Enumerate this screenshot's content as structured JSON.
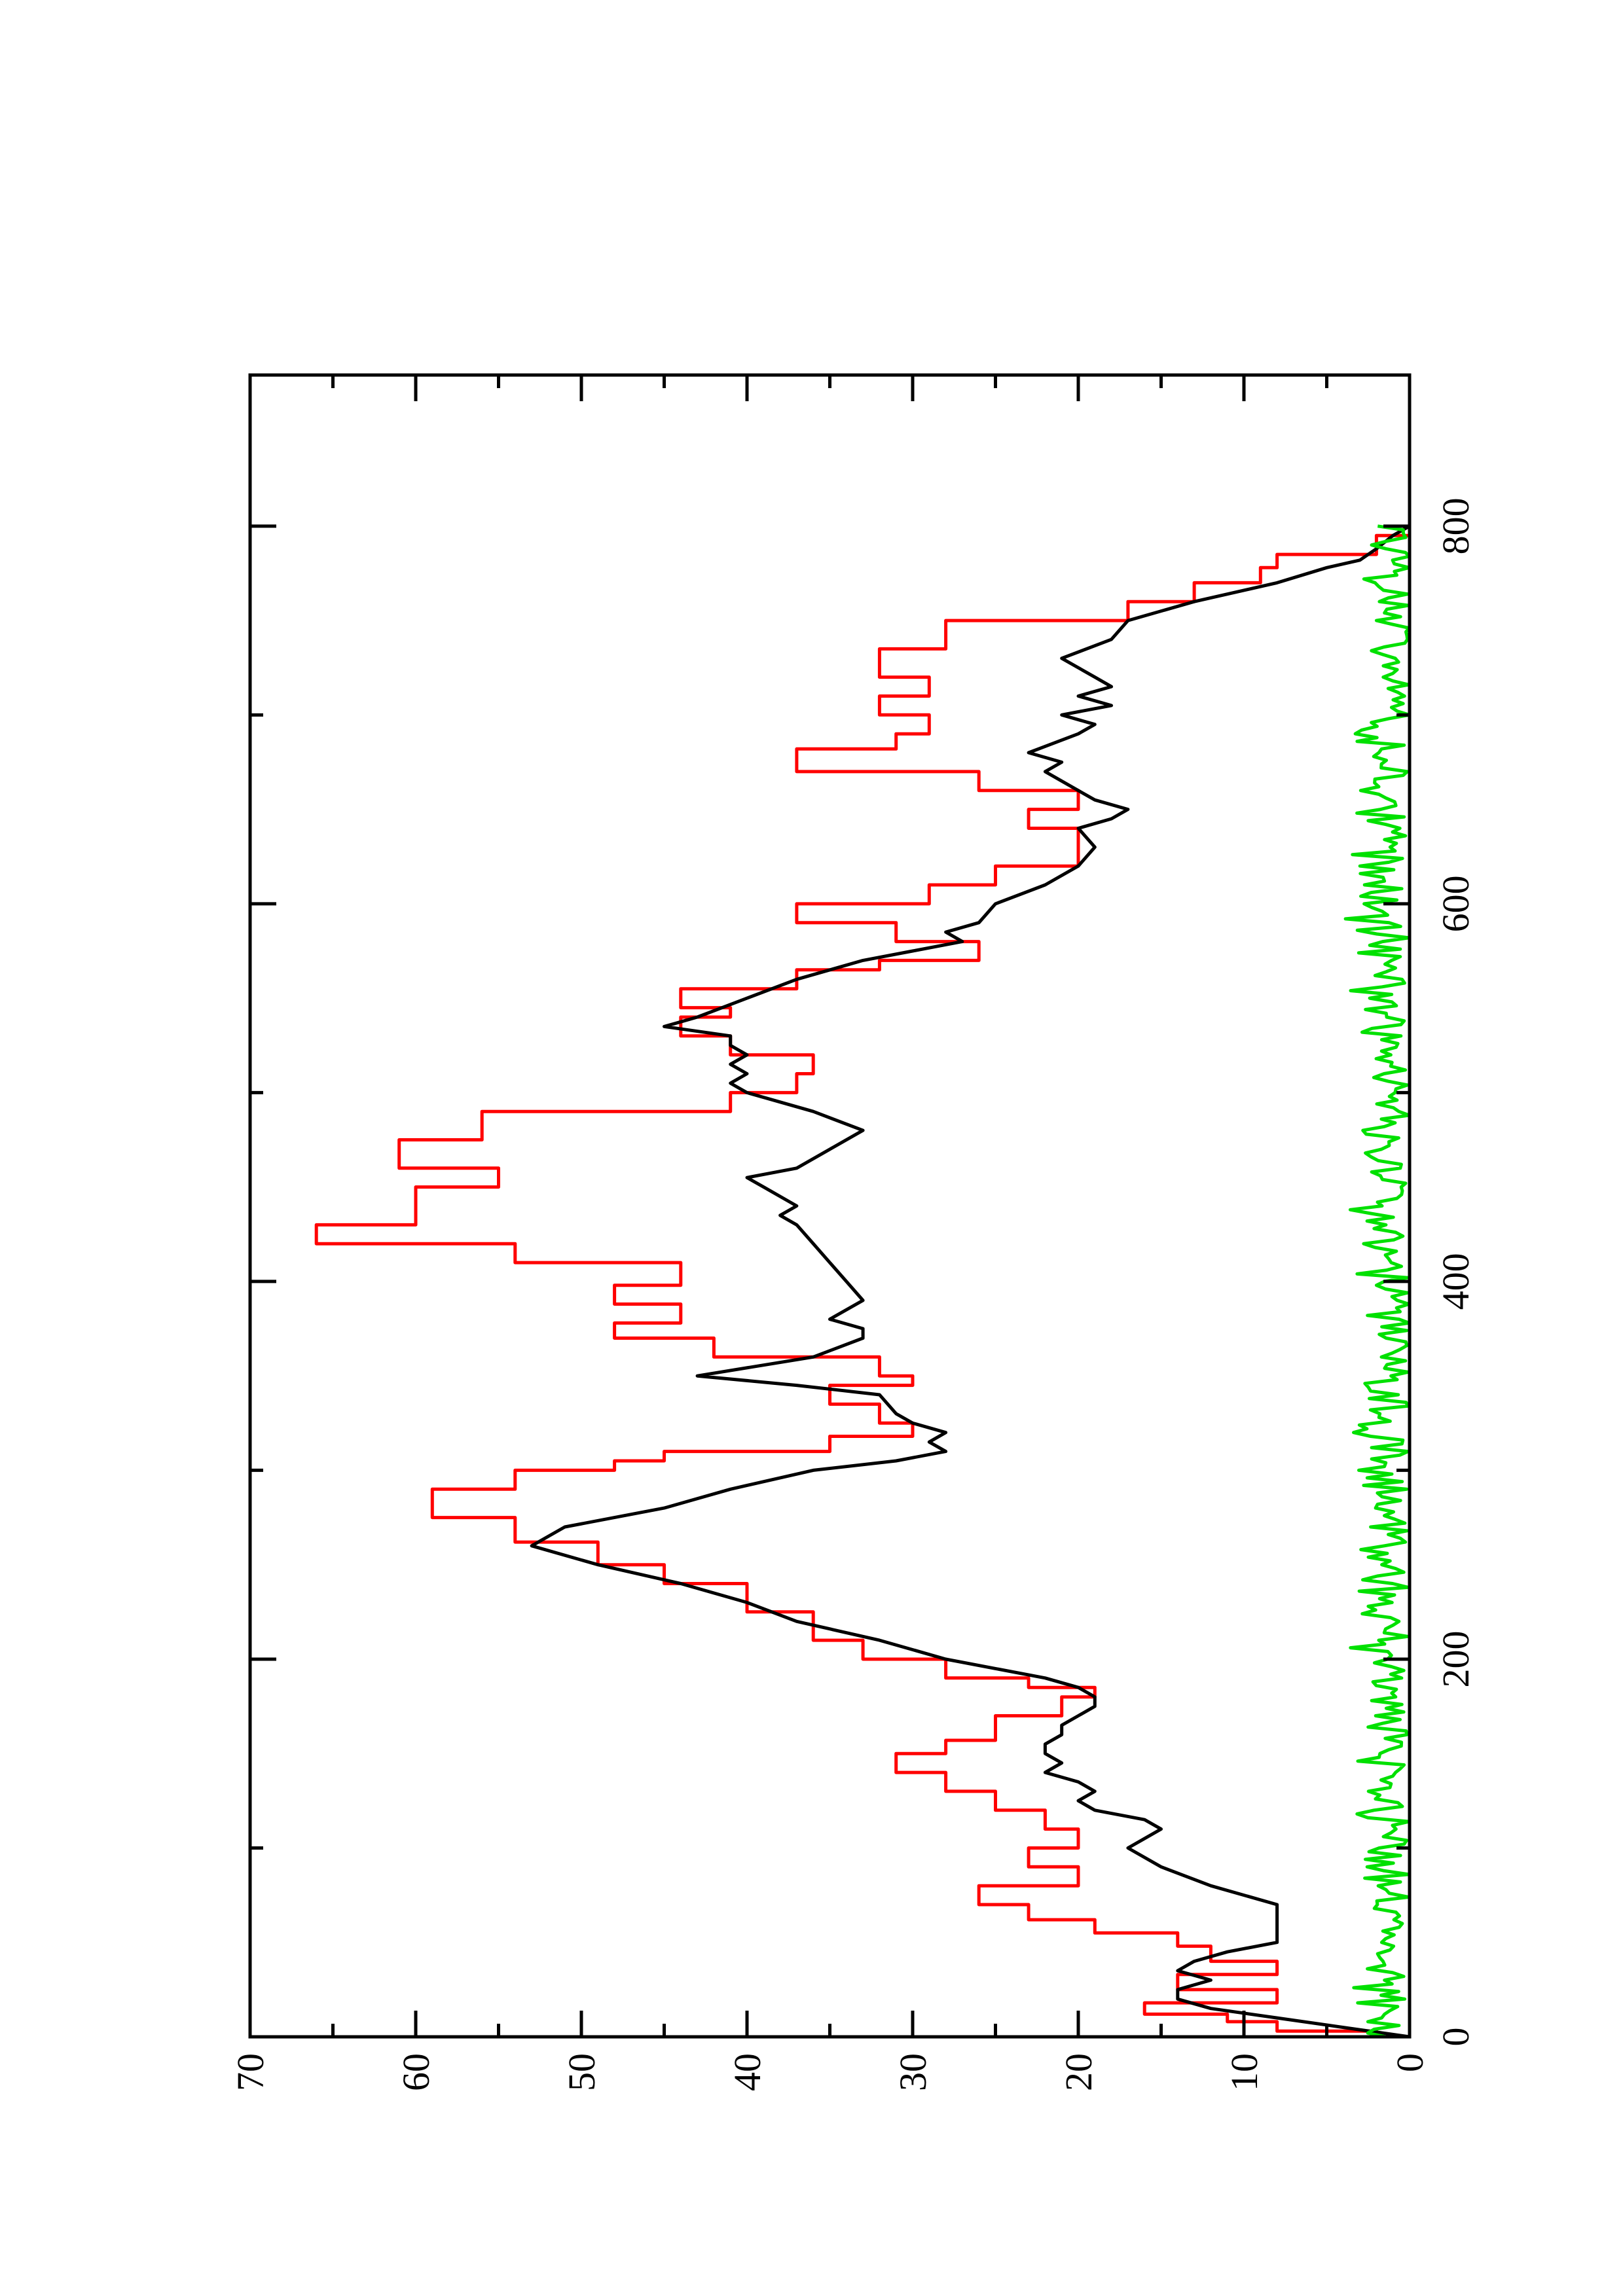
{
  "chart_data": {
    "type": "line",
    "orientation": "rotated-90-ccw",
    "title": "",
    "xlabel": "",
    "ylabel": "",
    "xlim": [
      0,
      880
    ],
    "ylim": [
      0,
      70
    ],
    "grid": false,
    "legend": "none",
    "x_major_ticks": [
      0,
      200,
      400,
      600,
      800
    ],
    "x_minor_ticks": [
      100,
      300,
      500,
      700
    ],
    "x_tick_labels": [
      "0",
      "200",
      "400",
      "600",
      "800"
    ],
    "y_major_ticks": [
      0,
      10,
      20,
      30,
      40,
      50,
      60,
      70
    ],
    "y_minor_ticks": [
      5,
      15,
      25,
      35,
      45,
      55,
      65
    ],
    "y_tick_labels": [
      "0",
      "10",
      "20",
      "30",
      "40",
      "50",
      "60",
      "70"
    ],
    "series": [
      {
        "color": "#ff0000",
        "step": true,
        "x": [
          0,
          3,
          8,
          12,
          18,
          25,
          33,
          40,
          48,
          55,
          62,
          70,
          80,
          90,
          100,
          110,
          120,
          130,
          140,
          150,
          157,
          170,
          180,
          185,
          190,
          200,
          210,
          225,
          240,
          250,
          262,
          275,
          290,
          300,
          305,
          310,
          318,
          325,
          335,
          345,
          350,
          360,
          370,
          378,
          388,
          398,
          410,
          420,
          430,
          450,
          460,
          475,
          490,
          500,
          510,
          520,
          530,
          540,
          545,
          555,
          565,
          570,
          580,
          590,
          600,
          610,
          620,
          640,
          650,
          660,
          670,
          682,
          690,
          700,
          710,
          720,
          735,
          750,
          760,
          770,
          778,
          785,
          795,
          800
        ],
        "y": [
          2,
          8,
          11,
          16,
          8,
          14,
          8,
          12,
          14,
          19,
          23,
          26,
          20,
          23,
          20,
          22,
          25,
          28,
          31,
          28,
          25,
          21,
          19,
          23,
          28,
          33,
          36,
          40,
          45,
          49,
          54,
          59,
          54,
          48,
          45,
          35,
          30,
          32,
          35,
          30,
          32,
          42,
          48,
          44,
          48,
          44,
          54,
          66,
          60,
          55,
          61,
          56,
          41,
          37,
          36,
          41,
          44,
          41,
          44,
          37,
          32,
          26,
          31,
          37,
          29,
          25,
          20,
          23,
          20,
          26,
          37,
          31,
          29,
          32,
          29,
          32,
          28,
          17,
          13,
          9,
          8,
          2,
          0,
          0
        ]
      },
      {
        "color": "#000000",
        "step": false,
        "x": [
          0,
          5,
          10,
          15,
          20,
          25,
          30,
          35,
          40,
          45,
          50,
          55,
          60,
          65,
          70,
          80,
          90,
          100,
          105,
          110,
          115,
          120,
          125,
          130,
          135,
          140,
          145,
          150,
          155,
          160,
          165,
          170,
          175,
          180,
          185,
          190,
          195,
          200,
          210,
          220,
          230,
          240,
          250,
          260,
          270,
          280,
          290,
          300,
          305,
          310,
          315,
          320,
          325,
          330,
          340,
          345,
          350,
          360,
          370,
          375,
          380,
          390,
          400,
          410,
          420,
          430,
          435,
          440,
          450,
          455,
          460,
          470,
          480,
          490,
          500,
          505,
          510,
          515,
          520,
          525,
          530,
          535,
          540,
          550,
          560,
          570,
          575,
          580,
          585,
          590,
          600,
          610,
          620,
          630,
          640,
          645,
          650,
          655,
          660,
          670,
          675,
          680,
          690,
          695,
          700,
          705,
          710,
          715,
          720,
          730,
          740,
          750,
          760,
          770,
          778,
          782,
          788,
          795,
          800
        ],
        "y": [
          0,
          4,
          8,
          12,
          14,
          14,
          12,
          14,
          13,
          11,
          8,
          8,
          8,
          8,
          8,
          12,
          15,
          17,
          16,
          15,
          16,
          19,
          20,
          19,
          20,
          22,
          21,
          22,
          22,
          21,
          21,
          20,
          19,
          19,
          20,
          22,
          25,
          28,
          32,
          37,
          40,
          44,
          49,
          53,
          51,
          45,
          41,
          36,
          31,
          28,
          29,
          28,
          30,
          31,
          32,
          37,
          43,
          36,
          33,
          33,
          35,
          33,
          34,
          35,
          36,
          37,
          38,
          37,
          39,
          40,
          37,
          35,
          33,
          36,
          40,
          41,
          40,
          41,
          40,
          41,
          41,
          45,
          43,
          40,
          37,
          33,
          30,
          27,
          28,
          26,
          25,
          22,
          20,
          19,
          20,
          18,
          17,
          19,
          20,
          22,
          21,
          23,
          20,
          19,
          21,
          18,
          20,
          18,
          19,
          21,
          18,
          17,
          13,
          8,
          5,
          3,
          2,
          1,
          0
        ]
      },
      {
        "color": "#00e000",
        "step": false,
        "noisy_baseline": true,
        "x": [
          0,
          800
        ],
        "y_range": [
          0,
          4
        ]
      }
    ]
  }
}
